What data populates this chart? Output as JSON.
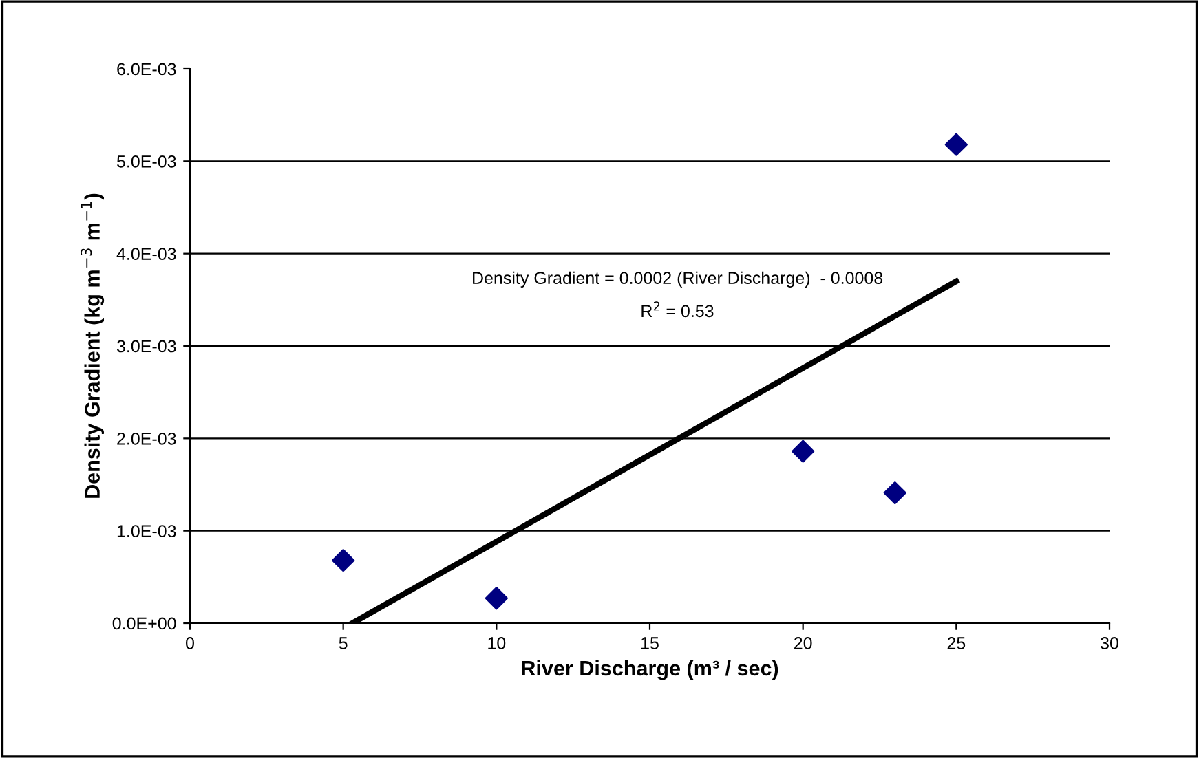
{
  "chart_data": {
    "type": "scatter",
    "xlabel": "River Discharge (m³ / sec)",
    "ylabel": "Density Gradient (kg m$^{−3}$ m$^{−1}$)",
    "series": [
      {
        "color": "#000080",
        "marker": "diamond",
        "x": [
          5,
          10,
          20,
          23,
          25
        ],
        "values": [
          0.00068,
          0.00027,
          0.00186,
          0.00141,
          0.00518
        ]
      },
      {
        "type": "line",
        "color": "#000000",
        "marker": "none",
        "line_style": "solid",
        "x": [
          5.3,
          25
        ],
        "values": [
          0,
          0.0037
        ]
      }
    ],
    "annotations": [
      "Density Gradient = 0.0002 (River Discharge)  - 0.0008",
      "R$^{2}$ = 0.53"
    ],
    "xlim": [
      0,
      30
    ],
    "xticks": [
      0,
      5,
      10,
      15,
      20,
      25,
      30
    ],
    "ylim": [
      0,
      0.006
    ],
    "yticks": [
      {
        "value": 0,
        "label": "0.0E+00"
      },
      {
        "value": 0.001,
        "label": "1.0E-03"
      },
      {
        "value": 0.002,
        "label": "2.0E-03"
      },
      {
        "value": 0.003,
        "label": "3.0E-03"
      },
      {
        "value": 0.004,
        "label": "4.0E-03"
      },
      {
        "value": 0.005,
        "label": "5.0E-03"
      },
      {
        "value": 0.006,
        "label": "6.0E-03"
      }
    ],
    "grid": "y",
    "legend": false
  }
}
